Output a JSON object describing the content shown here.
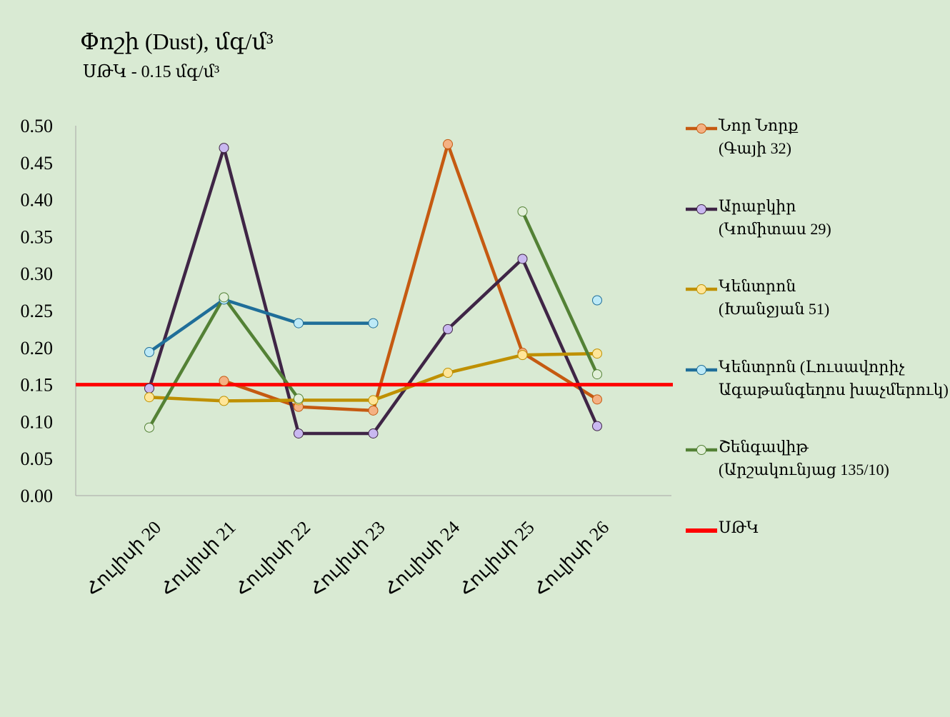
{
  "title": "Փոշի (Dust), մգ/մ³",
  "subtitle": "ՍԹԿ - 0.15 մգ/մ³",
  "chart_data": {
    "type": "line",
    "title": "Փոշի (Dust), մգ/մ³",
    "subtitle": "ՍԹԿ - 0.15 մգ/մ³",
    "categories": [
      "Հուլիսի 20",
      "Հուլիսի 21",
      "Հուլիսի 22",
      "Հուլիսի 23",
      "Հուլիսի 24",
      "Հուլիսի 25",
      "Հուլիսի 26"
    ],
    "ylim": [
      0,
      0.5
    ],
    "yticks": [
      "0.00",
      "0.05",
      "0.10",
      "0.15",
      "0.20",
      "0.25",
      "0.30",
      "0.35",
      "0.40",
      "0.45",
      "0.50"
    ],
    "grid": false,
    "legend_position": "right",
    "series": [
      {
        "name": "Նոր Նորք\n(Գայի 32)",
        "color": "#c55a11",
        "marker": "#f4b183",
        "values": [
          null,
          0.155,
          0.12,
          0.115,
          0.475,
          0.193,
          0.13
        ]
      },
      {
        "name": "Արաբկիր\n(Կոմիտաս 29)",
        "color": "#3f2546",
        "marker": "#c9b8f0",
        "values": [
          0.145,
          0.47,
          0.084,
          0.084,
          0.225,
          0.32,
          0.094
        ]
      },
      {
        "name": "Կենտրոն\n(Խանջյան 51)",
        "color": "#bf9000",
        "marker": "#ffe699",
        "values": [
          0.133,
          0.128,
          0.129,
          0.129,
          0.166,
          0.19,
          0.192
        ]
      },
      {
        "name": "Կենտրոն (Լուսավորիչ\nԱգաթանգեղոս խաչմերուկ)",
        "color": "#1f6e99",
        "marker": "#bdeaf7",
        "values": [
          0.194,
          0.265,
          0.233,
          0.233,
          null,
          null,
          0.264
        ]
      },
      {
        "name": "Շենգավիթ\n(Արշակունյաց 135/10)",
        "color": "#538135",
        "marker": "#e2f0d9",
        "values": [
          0.092,
          0.268,
          0.131,
          null,
          null,
          0.384,
          0.164
        ]
      }
    ],
    "reference_line": {
      "name": "ՍԹԿ",
      "value": 0.15,
      "color": "#ff0000"
    }
  }
}
